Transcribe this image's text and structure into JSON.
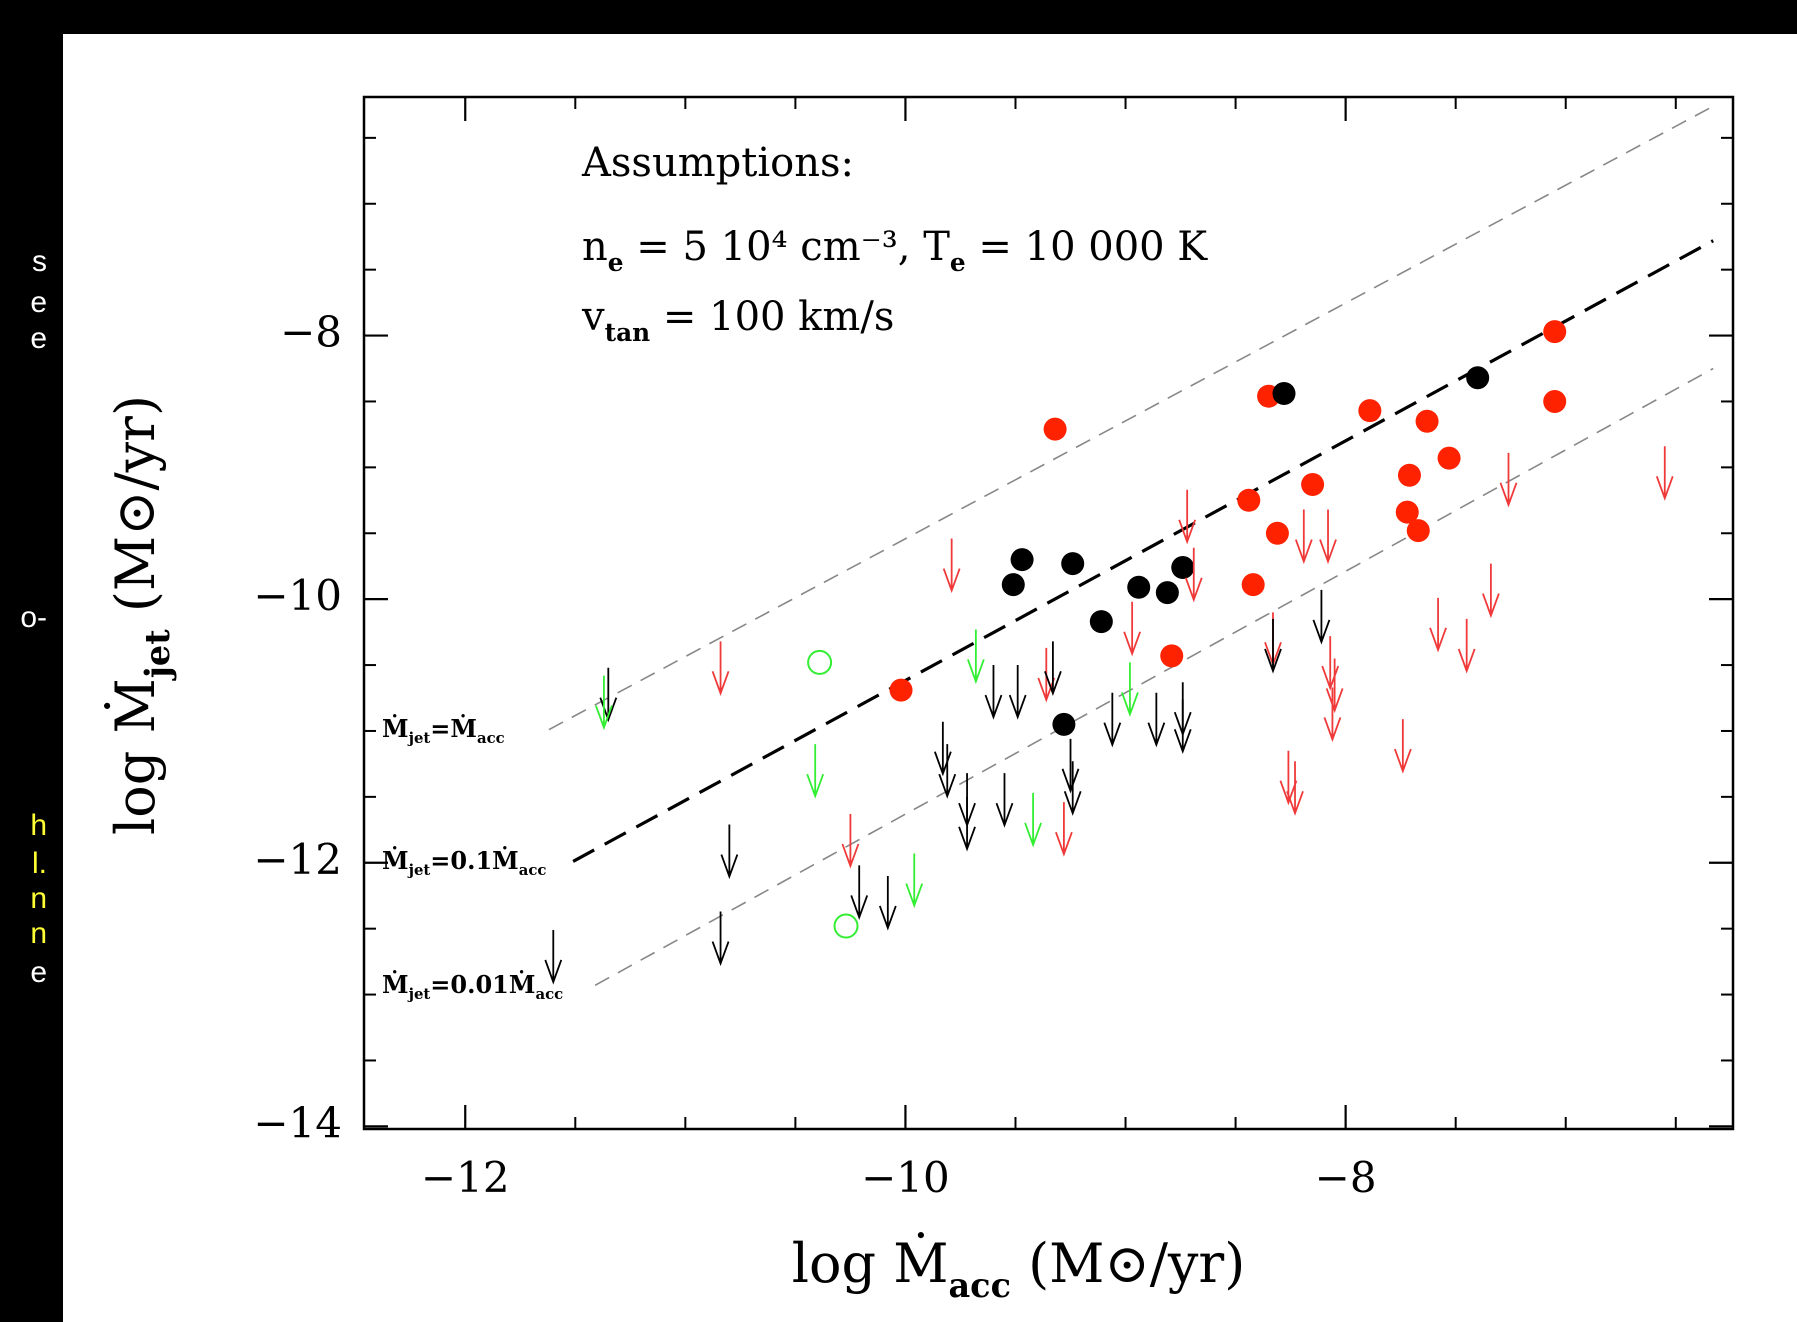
{
  "side_text": [
    {
      "text": "s",
      "color": "#ffffff"
    },
    {
      "text": "e",
      "color": "#ffffff"
    },
    {
      "text": "e",
      "color": "#ffffff"
    },
    {
      "text": "o-",
      "color": "#ffffff"
    },
    {
      "text": "h",
      "color": "#ffff33"
    },
    {
      "text": "l.",
      "color": "#ffff33"
    },
    {
      "text": "n",
      "color": "#ffff33"
    },
    {
      "text": "n",
      "color": "#ffff33"
    },
    {
      "text": "e",
      "color": "#ffffff"
    }
  ],
  "chart_data": {
    "type": "scatter",
    "x_label": [
      "log Ṁ",
      {
        "sub": "acc"
      },
      " (M⊙/yr)"
    ],
    "y_label": [
      "log Ṁ",
      {
        "sub": "jet"
      },
      " (M⊙/yr)"
    ],
    "annotations": [
      [
        "Assumptions:"
      ],
      [
        "n",
        {
          "sub": "e"
        },
        " = 5 10⁴ cm⁻³, T",
        {
          "sub": "e"
        },
        " = 10 000 K"
      ],
      [
        "v",
        {
          "sub": "tan"
        },
        " = 100 km/s"
      ]
    ],
    "xlim": [
      -12.46,
      -6.24
    ],
    "ylim": [
      -14.02,
      -6.19
    ],
    "xticks": [
      {
        "value": -12,
        "label": "−12"
      },
      {
        "value": -10,
        "label": "−10"
      },
      {
        "value": -8,
        "label": "−8"
      }
    ],
    "yticks": [
      {
        "value": -14,
        "label": "−14"
      },
      {
        "value": -12,
        "label": "−12"
      },
      {
        "value": -10,
        "label": "−10"
      },
      {
        "value": -8,
        "label": "−8"
      }
    ],
    "xticks_minor": [
      -12.5,
      -11.5,
      -11,
      -10.5,
      -9.5,
      -9,
      -8.5,
      -7.5,
      -7,
      -6.5
    ],
    "yticks_minor": [
      -13.5,
      -13,
      -12.5,
      -11.5,
      -11,
      -10.5,
      -9.5,
      -9,
      -8.5,
      -7.5,
      -7,
      -6.5
    ],
    "reference_lines": [
      {
        "label": [
          "Ṁ",
          {
            "sub": "jet"
          },
          "=Ṁ",
          {
            "sub": "acc"
          }
        ],
        "x": [
          -11.62,
          -6.33
        ],
        "values": [
          -10.99,
          -6.26
        ],
        "color": "#888888",
        "dash": "thin"
      },
      {
        "label": [
          "Ṁ",
          {
            "sub": "jet"
          },
          "=0.1Ṁ",
          {
            "sub": "acc"
          }
        ],
        "x": [
          -11.51,
          -6.33
        ],
        "values": [
          -11.99,
          -7.28
        ],
        "color": "#000000",
        "dash": "thick"
      },
      {
        "label": [
          "Ṁ",
          {
            "sub": "jet"
          },
          "=0.01Ṁ",
          {
            "sub": "acc"
          }
        ],
        "x": [
          -11.41,
          -6.33
        ],
        "values": [
          -12.93,
          -8.25
        ],
        "color": "#888888",
        "dash": "thin"
      }
    ],
    "series": [
      {
        "marker": "filled-circle",
        "color": "#ff2200",
        "x": [
          -9.32,
          -8.35,
          -7.89,
          -7.63,
          -7.53,
          -7.71,
          -8.15,
          -8.44,
          -8.31,
          -7.72,
          -7.67,
          -8.42,
          -8.79,
          -10.02,
          -7.05,
          -7.05
        ],
        "values": [
          -8.71,
          -8.46,
          -8.57,
          -8.65,
          -8.93,
          -9.06,
          -9.13,
          -9.25,
          -9.5,
          -9.34,
          -9.48,
          -9.89,
          -10.43,
          -10.69,
          -7.97,
          -8.5
        ]
      },
      {
        "marker": "filled-circle",
        "color": "#000000",
        "x": [
          -8.28,
          -7.4,
          -9.47,
          -9.51,
          -9.24,
          -8.94,
          -8.81,
          -8.74,
          -9.11,
          -9.28
        ],
        "values": [
          -8.44,
          -8.32,
          -9.7,
          -9.89,
          -9.73,
          -9.91,
          -9.95,
          -9.76,
          -10.17,
          -10.95
        ]
      },
      {
        "marker": "open-circle",
        "color": "#33ee33",
        "x": [
          -10.39,
          -10.27
        ],
        "values": [
          -10.48,
          -12.48
        ]
      },
      {
        "marker": "arrow-down",
        "color": "#f03a3a",
        "x": [
          -10.84,
          -9.79,
          -9.36,
          -8.72,
          -8.69,
          -8.97,
          -10.25,
          -9.28,
          -8.33,
          -8.19,
          -8.08,
          -8.07,
          -8.05,
          -8.26,
          -8.23,
          -8.06,
          -7.74,
          -7.58,
          -7.45,
          -7.34,
          -7.26,
          -6.55
        ],
        "values": [
          -10.32,
          -9.54,
          -10.37,
          -9.17,
          -9.61,
          -10.02,
          -11.63,
          -11.54,
          -10.1,
          -9.32,
          -9.32,
          -10.28,
          -10.45,
          -11.15,
          -11.23,
          -10.67,
          -10.91,
          -9.99,
          -10.15,
          -9.73,
          -8.89,
          -8.84
        ]
      },
      {
        "marker": "arrow-down",
        "color": "#000000",
        "x": [
          -11.35,
          -11.6,
          -10.84,
          -10.8,
          -10.21,
          -10.08,
          -9.83,
          -9.81,
          -9.72,
          -9.72,
          -9.6,
          -9.55,
          -9.49,
          -9.33,
          -9.25,
          -9.24,
          -9.06,
          -8.86,
          -8.74,
          -8.74,
          -8.33,
          -8.11
        ],
        "values": [
          -10.52,
          -12.51,
          -12.37,
          -11.71,
          -12.02,
          -12.1,
          -10.93,
          -11.1,
          -11.32,
          -11.5,
          -10.5,
          -11.32,
          -10.5,
          -10.32,
          -11.06,
          -11.23,
          -10.71,
          -10.71,
          -10.63,
          -10.76,
          -10.15,
          -9.93
        ]
      },
      {
        "marker": "arrow-down",
        "color": "#33ee33",
        "x": [
          -11.37,
          -9.68,
          -10.41,
          -8.98,
          -9.42,
          -9.96
        ],
        "values": [
          -10.58,
          -10.23,
          -11.1,
          -10.48,
          -11.47,
          -11.93
        ]
      }
    ]
  }
}
